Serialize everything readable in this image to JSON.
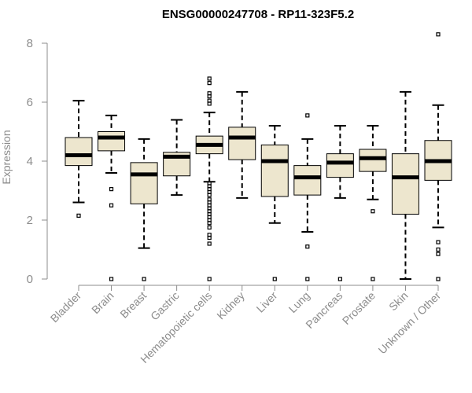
{
  "chart_data": {
    "type": "boxplot",
    "title": "ENSG00000247708 - RP11-323F5.2",
    "ylabel": "Expression",
    "xlabel": "",
    "ylim": [
      0,
      8.3
    ],
    "yticks": [
      0,
      2,
      4,
      6,
      8
    ],
    "grid": false,
    "box_color": "#ede6ce",
    "categories": [
      "Bladder",
      "Brain",
      "Breast",
      "Gastric",
      "Hematopoietic cells",
      "Kidney",
      "Liver",
      "Lung",
      "Pancreas",
      "Prostate",
      "Skin",
      "Unknown / Other"
    ],
    "boxes": [
      {
        "min": 2.6,
        "q1": 3.85,
        "median": 4.2,
        "q3": 4.8,
        "max": 6.05,
        "outliers": [
          2.15
        ]
      },
      {
        "min": 3.6,
        "q1": 4.35,
        "median": 4.8,
        "q3": 5.0,
        "max": 5.55,
        "outliers": [
          3.05,
          2.5,
          0.0
        ]
      },
      {
        "min": 1.05,
        "q1": 2.55,
        "median": 3.55,
        "q3": 3.95,
        "max": 4.75,
        "outliers": [
          0.0
        ]
      },
      {
        "min": 2.85,
        "q1": 3.5,
        "median": 4.15,
        "q3": 4.3,
        "max": 5.4,
        "outliers": []
      },
      {
        "min": 3.3,
        "q1": 4.25,
        "median": 4.55,
        "q3": 4.85,
        "max": 5.65,
        "outliers": [
          6.8,
          6.65,
          6.3,
          6.2,
          6.05,
          5.95,
          3.25,
          3.15,
          3.05,
          2.95,
          2.85,
          2.7,
          2.6,
          2.5,
          2.4,
          2.3,
          2.2,
          2.1,
          2.0,
          1.9,
          1.75,
          1.5,
          1.4,
          1.2,
          0.0
        ]
      },
      {
        "min": 2.75,
        "q1": 4.05,
        "median": 4.8,
        "q3": 5.15,
        "max": 6.35,
        "outliers": []
      },
      {
        "min": 1.9,
        "q1": 2.8,
        "median": 4.0,
        "q3": 4.55,
        "max": 5.2,
        "outliers": [
          0.0
        ]
      },
      {
        "min": 1.6,
        "q1": 2.85,
        "median": 3.45,
        "q3": 3.85,
        "max": 4.75,
        "outliers": [
          5.55,
          1.1,
          0.0
        ]
      },
      {
        "min": 2.75,
        "q1": 3.45,
        "median": 3.95,
        "q3": 4.25,
        "max": 5.2,
        "outliers": [
          0.0
        ]
      },
      {
        "min": 2.7,
        "q1": 3.65,
        "median": 4.1,
        "q3": 4.4,
        "max": 5.2,
        "outliers": [
          2.3,
          0.0
        ]
      },
      {
        "min": 0.0,
        "q1": 2.2,
        "median": 3.45,
        "q3": 4.25,
        "max": 6.35,
        "outliers": []
      },
      {
        "min": 1.75,
        "q1": 3.35,
        "median": 4.0,
        "q3": 4.7,
        "max": 5.9,
        "outliers": [
          8.3,
          1.25,
          1.0,
          0.85,
          0.0
        ]
      }
    ]
  }
}
